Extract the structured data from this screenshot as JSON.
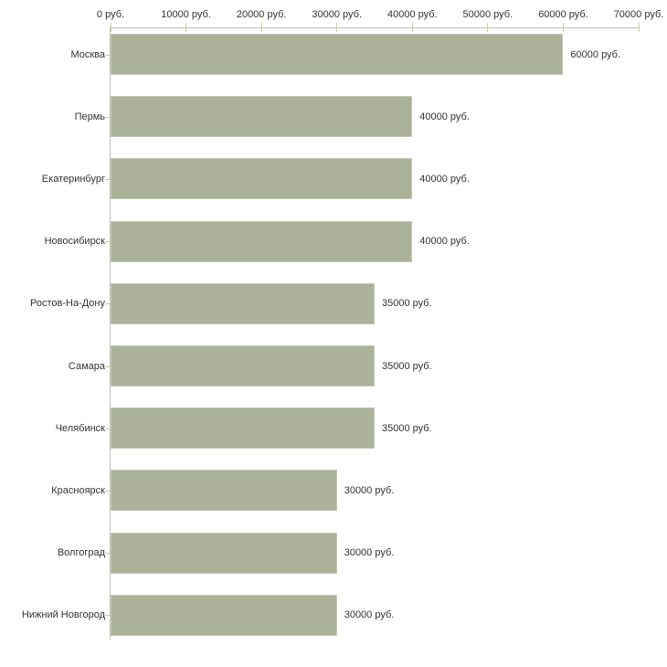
{
  "chart_data": {
    "type": "bar",
    "orientation": "horizontal",
    "title": "",
    "xlabel": "",
    "ylabel": "",
    "categories": [
      "Москва",
      "Пермь",
      "Екатеринбург",
      "Новосибирск",
      "Ростов-На-Дону",
      "Самара",
      "Челябинск",
      "Красноярск",
      "Волгоград",
      "Нижний Новгород"
    ],
    "values": [
      60000,
      40000,
      40000,
      40000,
      35000,
      35000,
      35000,
      30000,
      30000,
      30000
    ],
    "value_labels": [
      "60000 руб.",
      "40000 руб.",
      "40000 руб.",
      "40000 руб.",
      "35000 руб.",
      "35000 руб.",
      "35000 руб.",
      "30000 руб.",
      "30000 руб.",
      "30000 руб."
    ],
    "x_tick_values": [
      0,
      10000,
      20000,
      30000,
      40000,
      50000,
      60000,
      70000
    ],
    "x_tick_labels": [
      "0 руб.",
      "10000 руб.",
      "20000 руб.",
      "30000 руб.",
      "40000 руб.",
      "50000 руб.",
      "60000 руб.",
      "70000 руб."
    ],
    "xlim": [
      0,
      70000
    ],
    "grid": false,
    "legend": false,
    "axis_position": "top",
    "colors": {
      "bar_fill": "#abb299",
      "bar_border": "#c3c7b4",
      "axis_line": "#c0c0c0",
      "tick_mark": "#cccc99",
      "text": "#333333",
      "background": "#ffffff"
    }
  }
}
